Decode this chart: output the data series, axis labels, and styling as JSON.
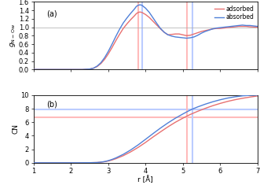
{
  "rdf_adsorbed_x": [
    1.0,
    1.5,
    2.0,
    2.3,
    2.5,
    2.6,
    2.7,
    2.8,
    2.9,
    3.0,
    3.1,
    3.2,
    3.3,
    3.4,
    3.5,
    3.6,
    3.7,
    3.75,
    3.8,
    3.85,
    3.9,
    4.0,
    4.1,
    4.2,
    4.3,
    4.4,
    4.5,
    4.6,
    4.7,
    4.8,
    4.9,
    5.0,
    5.1,
    5.2,
    5.3,
    5.4,
    5.5,
    5.6,
    5.7,
    5.8,
    5.9,
    6.0,
    6.1,
    6.2,
    6.3,
    6.4,
    6.5,
    6.6,
    6.7,
    6.8,
    7.0
  ],
  "rdf_adsorbed_y": [
    0.0,
    0.0,
    0.0,
    0.0,
    0.01,
    0.03,
    0.07,
    0.14,
    0.24,
    0.37,
    0.52,
    0.68,
    0.83,
    0.97,
    1.08,
    1.18,
    1.27,
    1.32,
    1.35,
    1.36,
    1.35,
    1.3,
    1.23,
    1.14,
    1.05,
    0.96,
    0.88,
    0.82,
    0.83,
    0.84,
    0.84,
    0.82,
    0.8,
    0.81,
    0.84,
    0.87,
    0.9,
    0.92,
    0.94,
    0.96,
    0.97,
    0.97,
    0.98,
    0.99,
    1.0,
    1.01,
    1.02,
    1.02,
    1.02,
    1.01,
    1.0
  ],
  "rdf_absorbed_x": [
    1.0,
    1.5,
    2.0,
    2.3,
    2.5,
    2.6,
    2.7,
    2.8,
    2.9,
    3.0,
    3.1,
    3.2,
    3.3,
    3.4,
    3.5,
    3.6,
    3.7,
    3.75,
    3.8,
    3.85,
    3.9,
    4.0,
    4.1,
    4.2,
    4.3,
    4.4,
    4.5,
    4.6,
    4.7,
    4.8,
    4.9,
    5.0,
    5.1,
    5.2,
    5.3,
    5.4,
    5.5,
    5.6,
    5.7,
    5.8,
    5.9,
    6.0,
    6.1,
    6.2,
    6.3,
    6.4,
    6.5,
    6.6,
    6.7,
    6.8,
    7.0
  ],
  "rdf_absorbed_y": [
    0.0,
    0.0,
    0.0,
    0.0,
    0.01,
    0.03,
    0.08,
    0.16,
    0.28,
    0.43,
    0.6,
    0.78,
    0.95,
    1.1,
    1.22,
    1.33,
    1.43,
    1.49,
    1.52,
    1.53,
    1.52,
    1.45,
    1.35,
    1.22,
    1.09,
    0.97,
    0.88,
    0.82,
    0.79,
    0.77,
    0.76,
    0.75,
    0.74,
    0.75,
    0.77,
    0.81,
    0.86,
    0.9,
    0.93,
    0.96,
    0.98,
    0.99,
    1.0,
    1.01,
    1.02,
    1.03,
    1.04,
    1.05,
    1.04,
    1.04,
    1.02
  ],
  "cn_adsorbed_x": [
    1.0,
    1.5,
    2.0,
    2.5,
    2.7,
    2.8,
    2.9,
    3.0,
    3.1,
    3.2,
    3.4,
    3.6,
    3.8,
    4.0,
    4.2,
    4.4,
    4.6,
    4.8,
    5.0,
    5.1,
    5.2,
    5.4,
    5.6,
    5.8,
    6.0,
    6.2,
    6.4,
    6.6,
    6.8,
    7.0
  ],
  "cn_adsorbed_y": [
    0.0,
    0.0,
    0.0,
    0.01,
    0.04,
    0.09,
    0.16,
    0.27,
    0.42,
    0.6,
    1.05,
    1.62,
    2.28,
    3.02,
    3.82,
    4.58,
    5.32,
    6.0,
    6.6,
    6.88,
    7.15,
    7.62,
    8.05,
    8.44,
    8.78,
    9.08,
    9.33,
    9.54,
    9.72,
    9.88
  ],
  "cn_absorbed_x": [
    1.0,
    1.5,
    2.0,
    2.5,
    2.7,
    2.8,
    2.9,
    3.0,
    3.1,
    3.2,
    3.4,
    3.6,
    3.8,
    4.0,
    4.2,
    4.4,
    4.6,
    4.8,
    5.0,
    5.1,
    5.2,
    5.3,
    5.4,
    5.6,
    5.8,
    6.0,
    6.2,
    6.4,
    6.6,
    6.8,
    7.0
  ],
  "cn_absorbed_y": [
    0.0,
    0.0,
    0.0,
    0.01,
    0.04,
    0.1,
    0.18,
    0.32,
    0.5,
    0.72,
    1.25,
    1.9,
    2.65,
    3.48,
    4.32,
    5.14,
    5.9,
    6.6,
    7.22,
    7.52,
    7.8,
    8.05,
    8.27,
    8.67,
    9.02,
    9.32,
    9.57,
    9.76,
    9.9,
    9.98,
    10.0
  ],
  "rdf_vline_adsorbed": 3.8,
  "rdf_vline_absorbed": 3.9,
  "rdf_vline_min_adsorbed": 5.1,
  "rdf_vline_min_absorbed": 5.25,
  "cn_hline_adsorbed": 6.7,
  "cn_hline_absorbed": 7.9,
  "cn_vline_adsorbed": 5.1,
  "cn_vline_absorbed": 5.25,
  "color_adsorbed": "#e87070",
  "color_absorbed": "#5080d8",
  "color_adsorbed_vline": "#ffbbbb",
  "color_absorbed_vline": "#bbccff",
  "ylabel_b": "CN",
  "xlabel": "r [Å]",
  "label_a": "(a)",
  "label_b": "(b)",
  "xlim": [
    1,
    7
  ],
  "ylim_a": [
    0.0,
    1.6
  ],
  "ylim_b": [
    0.0,
    10.0
  ],
  "yticks_a": [
    0.0,
    0.2,
    0.4,
    0.6,
    0.8,
    1.0,
    1.2,
    1.4,
    1.6
  ],
  "yticks_b": [
    0.0,
    2.0,
    4.0,
    6.0,
    8.0,
    10.0
  ],
  "xticks": [
    1,
    2,
    3,
    4,
    5,
    6,
    7
  ],
  "hline_y_a": 1.0,
  "background_color": "#ffffff",
  "legend_adsorbed": "adsorbed",
  "legend_absorbed": "absorbed"
}
